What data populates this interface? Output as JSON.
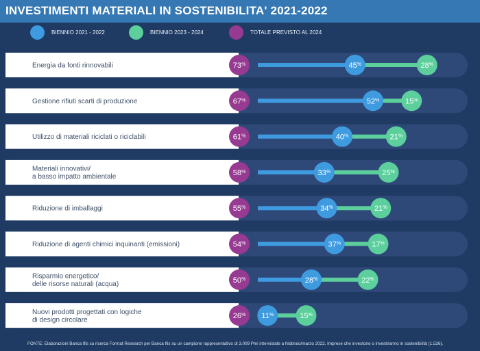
{
  "title": "INVESTIMENTI MATERIALI IN SOSTENIBILITA' 2021-2022",
  "legend": [
    {
      "label": "BIENNIO 2021 - 2022",
      "color": "#3f9be0"
    },
    {
      "label": "BIENNIO 2023 - 2024",
      "color": "#5ccf9c"
    },
    {
      "label": "TOTALE PREVISTO AL 2024",
      "color": "#963a92"
    }
  ],
  "colors": {
    "background": "#1f3b63",
    "header": "#3578b3",
    "row_track": "#2e4978",
    "label_panel": "#ffffff",
    "biennio_2021_2022": "#3f9be0",
    "biennio_2023_2024": "#5ccf9c",
    "totale": "#963a92"
  },
  "chart_data": {
    "type": "dot-range",
    "title": "INVESTIMENTI MATERIALI IN SOSTENIBILITA' 2021-2022",
    "unit": "%",
    "categories": [
      [
        "Energia da fonti rinnovabili"
      ],
      [
        "Gestione rifiuti scarti di produzione"
      ],
      [
        "Utilizzo di materiali riciclati o riciclabili"
      ],
      [
        "Materiali innovativi/",
        "a basso impatto ambientale"
      ],
      [
        "Riduzione di imballaggi"
      ],
      [
        "Riduzione di agenti chimici inquinanti (emissioni)"
      ],
      [
        "Risparmio energetico/",
        "delle risorse naturali (acqua)"
      ],
      [
        "Nuovi prodotti progettati con logiche",
        "di design circolare"
      ]
    ],
    "series": [
      {
        "name": "TOTALE PREVISTO AL 2024",
        "values": [
          73,
          67,
          61,
          58,
          55,
          54,
          50,
          26
        ]
      },
      {
        "name": "BIENNIO 2021 - 2022",
        "values": [
          45,
          52,
          40,
          33,
          34,
          37,
          28,
          11
        ]
      },
      {
        "name": "BIENNIO 2023 - 2024",
        "values": [
          28,
          15,
          21,
          25,
          21,
          17,
          22,
          15
        ]
      }
    ]
  },
  "footer": "FONTE: Elaborazioni Banca Ifis su ricerca Format Research per Banca Ifis su un campione rappresentativo di 3.009 Pmi intervistate a febbraio/marzo 2022. Imprese che investono o investiranno in sostenibilità (1.526)."
}
